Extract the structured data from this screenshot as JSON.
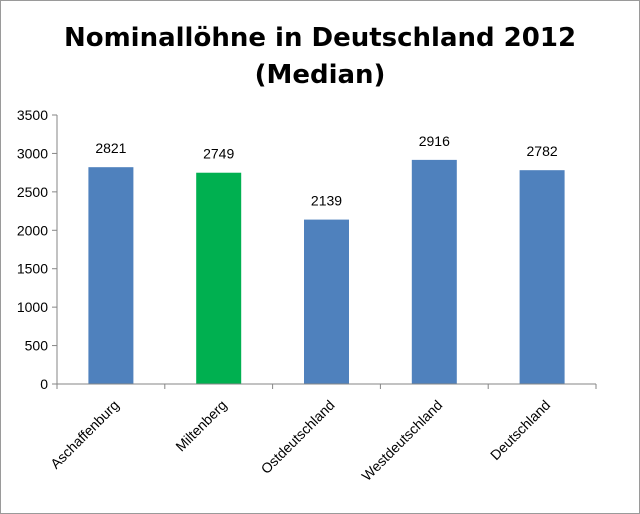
{
  "chart_data": {
    "type": "bar",
    "title_lines": [
      "Nominallöhne in Deutschland 2012",
      "(Median)"
    ],
    "categories": [
      "Aschaffenburg",
      "Miltenberg",
      "Ostdeutschland",
      "Westdeutschland",
      "Deutschland"
    ],
    "values": [
      2821,
      2749,
      2139,
      2916,
      2782
    ],
    "data_labels": [
      "2821",
      "2749",
      "2139",
      "2916",
      "2782"
    ],
    "bar_colors": [
      "#4f81bd",
      "#00b050",
      "#4f81bd",
      "#4f81bd",
      "#4f81bd"
    ],
    "ylim": [
      0,
      3500
    ],
    "y_ticks": [
      0,
      500,
      1000,
      1500,
      2000,
      2500,
      3000,
      3500
    ],
    "y_tick_labels": [
      "0",
      "500",
      "1000",
      "1500",
      "2000",
      "2500",
      "3000",
      "3500"
    ],
    "xlabel": "",
    "ylabel": "",
    "grid": false,
    "legend": "none"
  }
}
